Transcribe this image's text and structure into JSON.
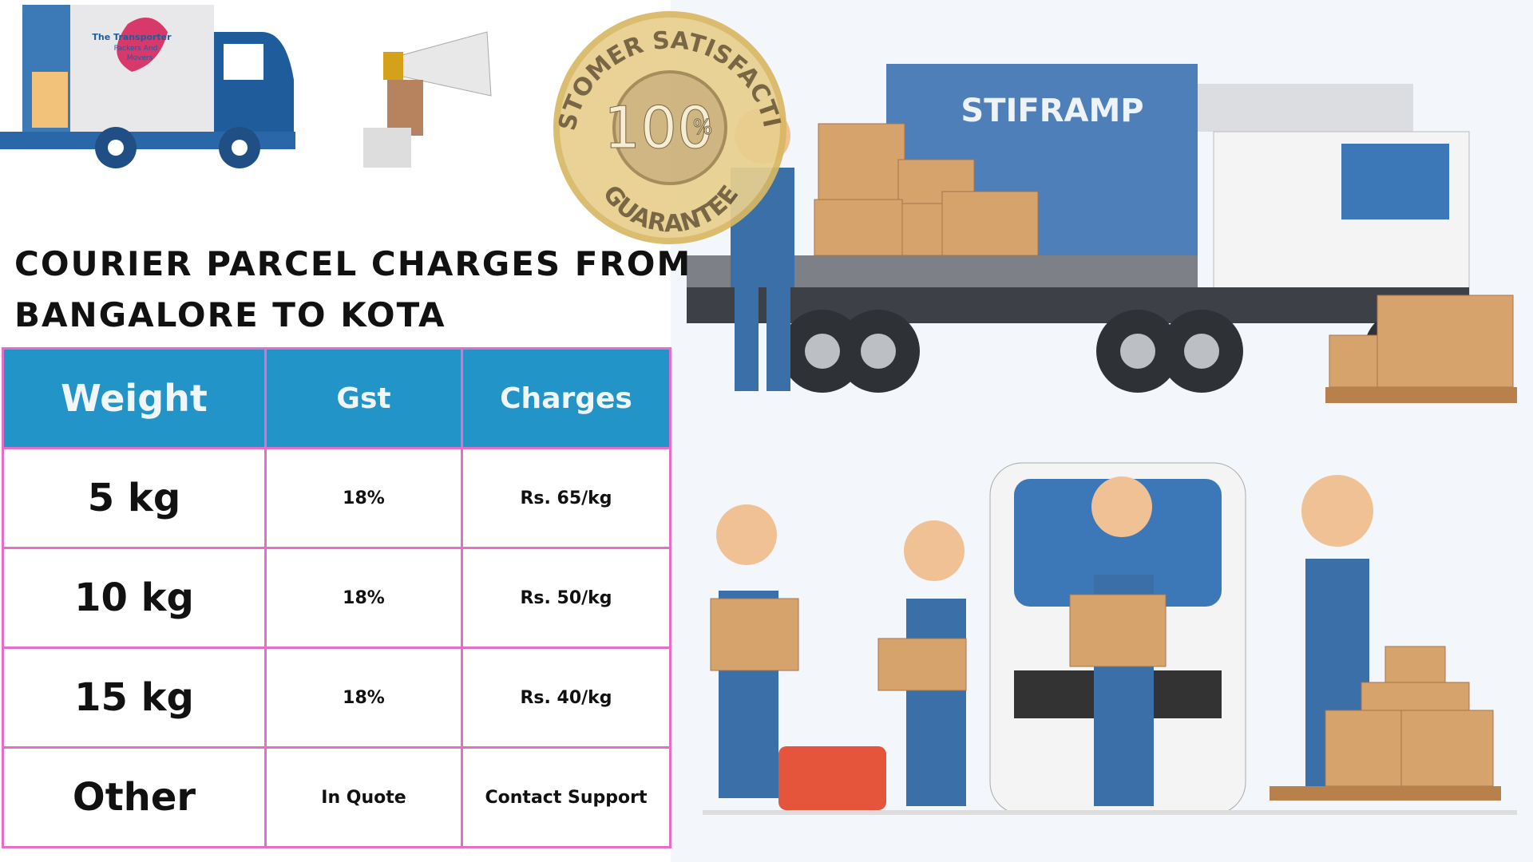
{
  "logo": {
    "line1": "The Transporter",
    "line2": "Packers And",
    "line3": "Movers"
  },
  "badge": {
    "top": "CUSTOMER SATISFACTION",
    "value": "100",
    "unit": "%",
    "bottom": "GUARANTEE"
  },
  "truck_label": "STIFRAMP",
  "title": {
    "line1": "COURIER PARCEL CHARGES FROM",
    "line2": "BANGALORE TO KOTA"
  },
  "table": {
    "header": [
      "Weight",
      "Gst",
      "Charges"
    ],
    "rows": [
      [
        "5 kg",
        "18%",
        "Rs. 65/kg"
      ],
      [
        "10 kg",
        "18%",
        "Rs. 50/kg"
      ],
      [
        "15 kg",
        "18%",
        "Rs. 40/kg"
      ],
      [
        "Other",
        "In Quote",
        "Contact Support"
      ]
    ]
  }
}
